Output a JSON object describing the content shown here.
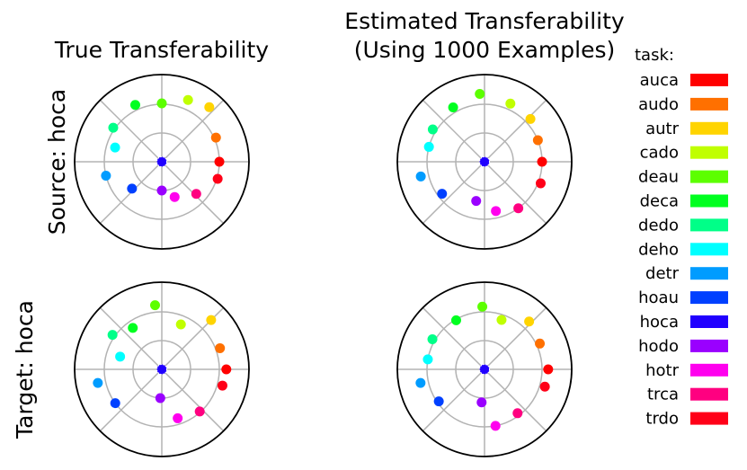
{
  "chart_data": {
    "type": "scatter",
    "subtype": "polar",
    "legend": {
      "title": "task:",
      "placement": "right",
      "entries": [
        {
          "name": "auca",
          "color": "#ff0000"
        },
        {
          "name": "audo",
          "color": "#ff7000"
        },
        {
          "name": "autr",
          "color": "#ffd400"
        },
        {
          "name": "cado",
          "color": "#c0ff00"
        },
        {
          "name": "deau",
          "color": "#5cff00"
        },
        {
          "name": "deca",
          "color": "#00ff20"
        },
        {
          "name": "dedo",
          "color": "#00ff88"
        },
        {
          "name": "deho",
          "color": "#00ffff"
        },
        {
          "name": "detr",
          "color": "#009cff"
        },
        {
          "name": "hoau",
          "color": "#0040ff"
        },
        {
          "name": "hoca",
          "color": "#2000ff"
        },
        {
          "name": "hodo",
          "color": "#9a00ff"
        },
        {
          "name": "hotr",
          "color": "#ff00ee"
        },
        {
          "name": "trca",
          "color": "#ff0080"
        },
        {
          "name": "trdo",
          "color": "#ff0018"
        }
      ]
    },
    "column_titles": [
      "True Transferability",
      "Estimated Transferability\n(Using 1000 Examples)"
    ],
    "row_labels": [
      "Source: hoca",
      "Target: hoca"
    ],
    "center_task": "hoca",
    "rlim": [
      0,
      1
    ],
    "grid": true,
    "panels": [
      {
        "row": 0,
        "col": 0,
        "points": [
          {
            "task": "auca",
            "theta": 0,
            "r": 0.66
          },
          {
            "task": "audo",
            "theta": 24,
            "r": 0.68
          },
          {
            "task": "autr",
            "theta": 49,
            "r": 0.83
          },
          {
            "task": "cado",
            "theta": 67,
            "r": 0.77
          },
          {
            "task": "deau",
            "theta": 90,
            "r": 0.67
          },
          {
            "task": "deca",
            "theta": 115,
            "r": 0.72
          },
          {
            "task": "dedo",
            "theta": 145,
            "r": 0.68
          },
          {
            "task": "deho",
            "theta": 163,
            "r": 0.56
          },
          {
            "task": "detr",
            "theta": 194,
            "r": 0.66
          },
          {
            "task": "hoau",
            "theta": 222,
            "r": 0.46
          },
          {
            "task": "hoca",
            "theta": 0,
            "r": 0.0
          },
          {
            "task": "hodo",
            "theta": 270,
            "r": 0.33
          },
          {
            "task": "hotr",
            "theta": 290,
            "r": 0.43
          },
          {
            "task": "trca",
            "theta": 317,
            "r": 0.54
          },
          {
            "task": "trdo",
            "theta": 343,
            "r": 0.67
          }
        ]
      },
      {
        "row": 0,
        "col": 1,
        "points": [
          {
            "task": "auca",
            "theta": 0,
            "r": 0.66
          },
          {
            "task": "audo",
            "theta": 22,
            "r": 0.66
          },
          {
            "task": "autr",
            "theta": 43,
            "r": 0.72
          },
          {
            "task": "cado",
            "theta": 66,
            "r": 0.73
          },
          {
            "task": "deau",
            "theta": 94,
            "r": 0.78
          },
          {
            "task": "deca",
            "theta": 120,
            "r": 0.72
          },
          {
            "task": "dedo",
            "theta": 148,
            "r": 0.7
          },
          {
            "task": "deho",
            "theta": 165,
            "r": 0.66
          },
          {
            "task": "detr",
            "theta": 193,
            "r": 0.75
          },
          {
            "task": "hoau",
            "theta": 217,
            "r": 0.61
          },
          {
            "task": "hoca",
            "theta": 0,
            "r": 0.0
          },
          {
            "task": "hodo",
            "theta": 258,
            "r": 0.46
          },
          {
            "task": "hotr",
            "theta": 283,
            "r": 0.58
          },
          {
            "task": "trca",
            "theta": 306,
            "r": 0.66
          },
          {
            "task": "trdo",
            "theta": 339,
            "r": 0.69
          }
        ]
      },
      {
        "row": 1,
        "col": 0,
        "points": [
          {
            "task": "auca",
            "theta": 0,
            "r": 0.74
          },
          {
            "task": "audo",
            "theta": 20,
            "r": 0.71
          },
          {
            "task": "autr",
            "theta": 45,
            "r": 0.8
          },
          {
            "task": "cado",
            "theta": 67,
            "r": 0.56
          },
          {
            "task": "deau",
            "theta": 96,
            "r": 0.74
          },
          {
            "task": "deca",
            "theta": 125,
            "r": 0.58
          },
          {
            "task": "dedo",
            "theta": 145,
            "r": 0.69
          },
          {
            "task": "deho",
            "theta": 163,
            "r": 0.5
          },
          {
            "task": "detr",
            "theta": 192,
            "r": 0.75
          },
          {
            "task": "hoau",
            "theta": 216,
            "r": 0.66
          },
          {
            "task": "hoca",
            "theta": 0,
            "r": 0.0
          },
          {
            "task": "hodo",
            "theta": 267,
            "r": 0.33
          },
          {
            "task": "hotr",
            "theta": 288,
            "r": 0.59
          },
          {
            "task": "trca",
            "theta": 312,
            "r": 0.65
          },
          {
            "task": "trdo",
            "theta": 345,
            "r": 0.72
          }
        ]
      },
      {
        "row": 1,
        "col": 1,
        "points": [
          {
            "task": "auca",
            "theta": 0,
            "r": 0.73
          },
          {
            "task": "audo",
            "theta": 25,
            "r": 0.7
          },
          {
            "task": "autr",
            "theta": 47,
            "r": 0.75
          },
          {
            "task": "cado",
            "theta": 71,
            "r": 0.6
          },
          {
            "task": "deau",
            "theta": 92,
            "r": 0.72
          },
          {
            "task": "deca",
            "theta": 120,
            "r": 0.65
          },
          {
            "task": "dedo",
            "theta": 150,
            "r": 0.69
          },
          {
            "task": "deho",
            "theta": 170,
            "r": 0.66
          },
          {
            "task": "detr",
            "theta": 192,
            "r": 0.75
          },
          {
            "task": "hoau",
            "theta": 215,
            "r": 0.64
          },
          {
            "task": "hoca",
            "theta": 0,
            "r": 0.0
          },
          {
            "task": "hodo",
            "theta": 265,
            "r": 0.38
          },
          {
            "task": "hotr",
            "theta": 281,
            "r": 0.66
          },
          {
            "task": "trca",
            "theta": 307,
            "r": 0.63
          },
          {
            "task": "trdo",
            "theta": 344,
            "r": 0.72
          }
        ]
      }
    ]
  }
}
